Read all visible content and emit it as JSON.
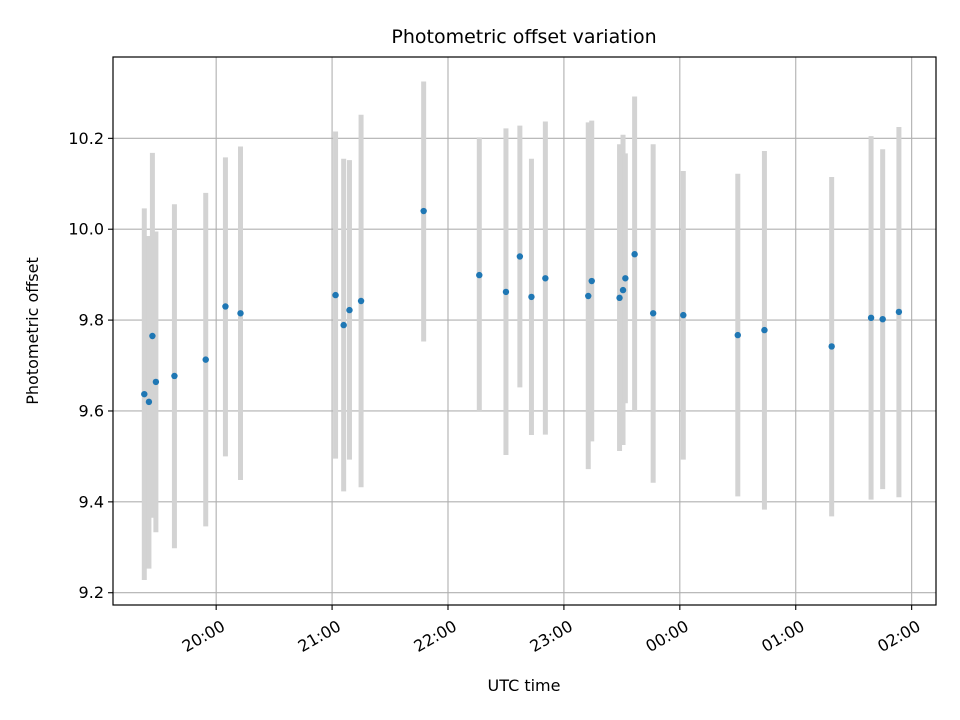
{
  "chart_data": {
    "type": "scatter",
    "title": "Photometric offset variation",
    "xlabel": "UTC time",
    "ylabel": "Photometric offset",
    "grid": true,
    "x_unit": "hours since 00:00 UTC (negative = previous day)",
    "xlim": [
      -4.89,
      2.21
    ],
    "ylim": [
      9.173,
      10.379
    ],
    "xticks": [
      {
        "value": -4,
        "label": "20:00"
      },
      {
        "value": -3,
        "label": "21:00"
      },
      {
        "value": -2,
        "label": "22:00"
      },
      {
        "value": -1,
        "label": "23:00"
      },
      {
        "value": 0,
        "label": "00:00"
      },
      {
        "value": 1,
        "label": "01:00"
      },
      {
        "value": 2,
        "label": "02:00"
      }
    ],
    "yticks": [
      {
        "value": 9.2,
        "label": "9.2"
      },
      {
        "value": 9.4,
        "label": "9.4"
      },
      {
        "value": 9.6,
        "label": "9.6"
      },
      {
        "value": 9.8,
        "label": "9.8"
      },
      {
        "value": 10.0,
        "label": "10.0"
      },
      {
        "value": 10.2,
        "label": "10.2"
      }
    ],
    "point_color": "#1f77b4",
    "errorbar_color": "#d3d3d3",
    "points": [
      {
        "x": -4.62,
        "y": 9.637,
        "low": 9.228,
        "high": 10.046
      },
      {
        "x": -4.58,
        "y": 9.62,
        "low": 9.253,
        "high": 9.985
      },
      {
        "x": -4.55,
        "y": 9.765,
        "low": 9.365,
        "high": 10.168
      },
      {
        "x": -4.52,
        "y": 9.664,
        "low": 9.333,
        "high": 9.995
      },
      {
        "x": -4.36,
        "y": 9.677,
        "low": 9.298,
        "high": 10.055
      },
      {
        "x": -4.09,
        "y": 9.713,
        "low": 9.346,
        "high": 10.08
      },
      {
        "x": -3.92,
        "y": 9.83,
        "low": 9.5,
        "high": 10.158
      },
      {
        "x": -3.79,
        "y": 9.815,
        "low": 9.448,
        "high": 10.182
      },
      {
        "x": -2.97,
        "y": 9.855,
        "low": 9.495,
        "high": 10.215
      },
      {
        "x": -2.9,
        "y": 9.789,
        "low": 9.423,
        "high": 10.155
      },
      {
        "x": -2.85,
        "y": 9.822,
        "low": 9.493,
        "high": 10.152
      },
      {
        "x": -2.75,
        "y": 9.842,
        "low": 9.432,
        "high": 10.252
      },
      {
        "x": -2.21,
        "y": 10.04,
        "low": 9.753,
        "high": 10.325
      },
      {
        "x": -1.73,
        "y": 9.899,
        "low": 9.598,
        "high": 10.202
      },
      {
        "x": -1.5,
        "y": 9.862,
        "low": 9.503,
        "high": 10.222
      },
      {
        "x": -1.38,
        "y": 9.94,
        "low": 9.652,
        "high": 10.228
      },
      {
        "x": -1.28,
        "y": 9.851,
        "low": 9.547,
        "high": 10.155
      },
      {
        "x": -1.16,
        "y": 9.892,
        "low": 9.548,
        "high": 10.237
      },
      {
        "x": -0.79,
        "y": 9.853,
        "low": 9.472,
        "high": 10.235
      },
      {
        "x": -0.76,
        "y": 9.886,
        "low": 9.533,
        "high": 10.239
      },
      {
        "x": -0.52,
        "y": 9.849,
        "low": 9.512,
        "high": 10.187
      },
      {
        "x": -0.49,
        "y": 9.866,
        "low": 9.525,
        "high": 10.208
      },
      {
        "x": -0.47,
        "y": 9.892,
        "low": 9.617,
        "high": 10.167
      },
      {
        "x": -0.39,
        "y": 9.945,
        "low": 9.598,
        "high": 10.292
      },
      {
        "x": -0.23,
        "y": 9.815,
        "low": 9.442,
        "high": 10.187
      },
      {
        "x": 0.03,
        "y": 9.811,
        "low": 9.493,
        "high": 10.128
      },
      {
        "x": 0.5,
        "y": 9.767,
        "low": 9.412,
        "high": 10.122
      },
      {
        "x": 0.73,
        "y": 9.778,
        "low": 9.383,
        "high": 10.172
      },
      {
        "x": 1.31,
        "y": 9.742,
        "low": 9.368,
        "high": 10.115
      },
      {
        "x": 1.65,
        "y": 9.805,
        "low": 9.405,
        "high": 10.205
      },
      {
        "x": 1.75,
        "y": 9.802,
        "low": 9.428,
        "high": 10.176
      },
      {
        "x": 1.89,
        "y": 9.818,
        "low": 9.41,
        "high": 10.225
      }
    ]
  }
}
